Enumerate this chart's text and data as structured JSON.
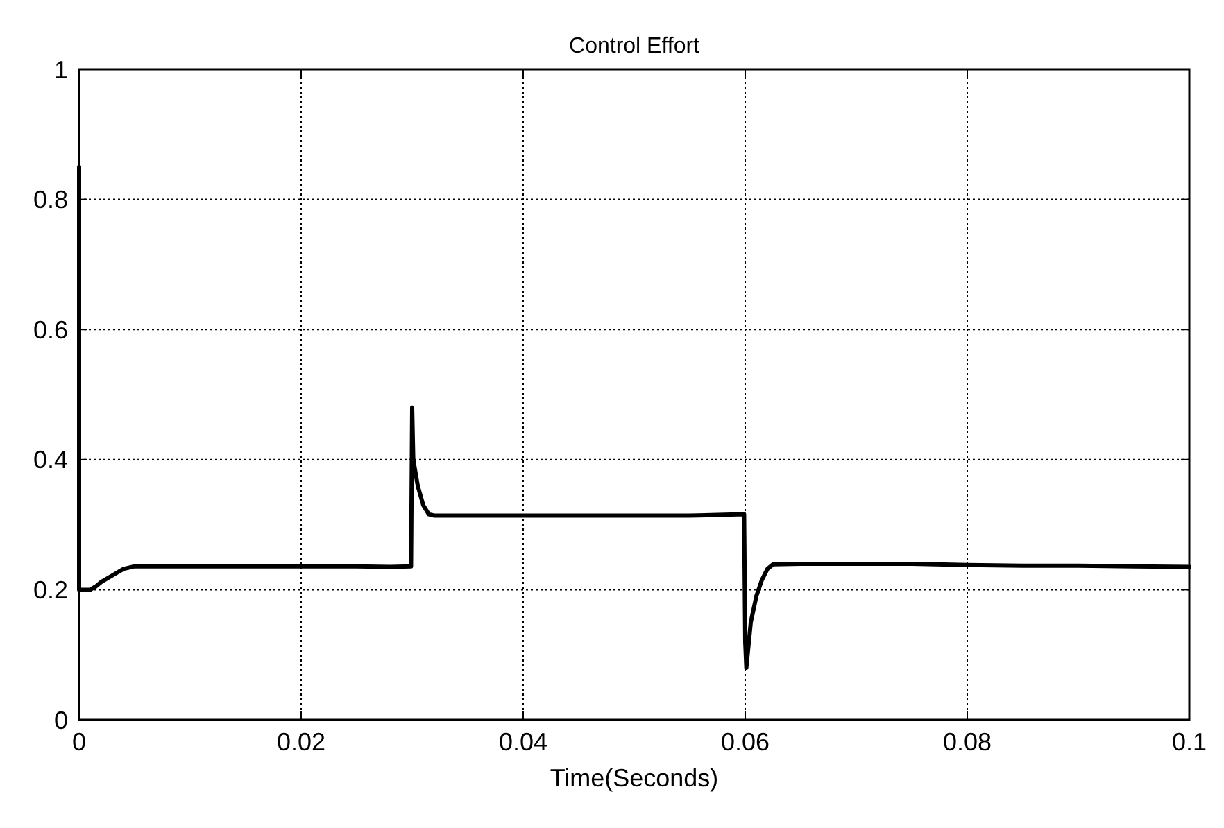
{
  "chart_data": {
    "type": "line",
    "title": "Control Effort",
    "xlabel": "Time(Seconds)",
    "series": [
      {
        "color": "#000000",
        "x": [
          0,
          0,
          0.0002,
          0.001,
          0.0015,
          0.002,
          0.003,
          0.004,
          0.005,
          0.01,
          0.015,
          0.02,
          0.025,
          0.028,
          0.0299,
          0.03,
          0.0301,
          0.0305,
          0.031,
          0.0315,
          0.032,
          0.035,
          0.04,
          0.045,
          0.05,
          0.055,
          0.0599,
          0.06,
          0.0601,
          0.0605,
          0.061,
          0.0615,
          0.062,
          0.0625,
          0.065,
          0.07,
          0.075,
          0.08,
          0.085,
          0.09,
          0.095,
          0.1
        ],
        "values": [
          0.85,
          0.2,
          0.2,
          0.2,
          0.205,
          0.212,
          0.222,
          0.232,
          0.236,
          0.236,
          0.236,
          0.236,
          0.236,
          0.235,
          0.236,
          0.48,
          0.4,
          0.36,
          0.33,
          0.316,
          0.314,
          0.314,
          0.314,
          0.314,
          0.314,
          0.314,
          0.316,
          0.12,
          0.08,
          0.15,
          0.19,
          0.215,
          0.232,
          0.239,
          0.24,
          0.24,
          0.24,
          0.238,
          0.237,
          0.237,
          0.236,
          0.235
        ]
      }
    ],
    "xlim": [
      0,
      0.1
    ],
    "ylim": [
      0,
      1
    ],
    "xticks": [
      0,
      0.02,
      0.04,
      0.06,
      0.08,
      0.1
    ],
    "yticks": [
      0,
      0.2,
      0.4,
      0.6,
      0.8,
      1
    ],
    "grid": true,
    "line_style": "solid",
    "marker": "none"
  }
}
